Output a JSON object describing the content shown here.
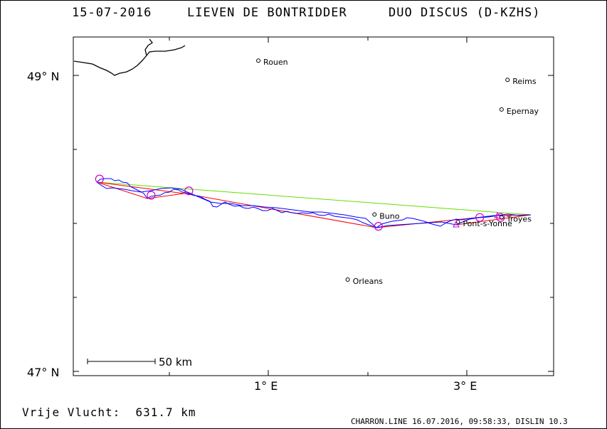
{
  "header": {
    "date": "15-07-2016",
    "pilot": "LIEVEN DE BONTRIDDER",
    "glider": "DUO DISCUS (D-KZHS)"
  },
  "axes": {
    "lat_top_label": "49° N",
    "lat_bottom_label": "47° N",
    "lon_left_label": "1° E",
    "lon_right_label": "3° E"
  },
  "scale_bar": {
    "label": "50 km"
  },
  "cities": [
    {
      "name": "Rouen",
      "lon": 0.9,
      "lat": 49.1
    },
    {
      "name": "Reims",
      "lon": 3.41,
      "lat": 48.97
    },
    {
      "name": "Epernay",
      "lon": 3.35,
      "lat": 48.77
    },
    {
      "name": "Buno",
      "lon": 2.07,
      "lat": 48.06
    },
    {
      "name": "Pont-s-Yonne",
      "lon": 2.91,
      "lat": 48.01
    },
    {
      "name": "Troyes",
      "lon": 3.35,
      "lat": 48.04
    },
    {
      "name": "Orleans",
      "lon": 1.8,
      "lat": 47.62
    }
  ],
  "turnpoints": [
    {
      "lon": -0.7,
      "lat": 48.3
    },
    {
      "lon": -0.18,
      "lat": 48.19
    },
    {
      "lon": 0.2,
      "lat": 48.22
    },
    {
      "lon": 2.11,
      "lat": 47.98
    },
    {
      "lon": 3.13,
      "lat": 48.04
    },
    {
      "lon": 3.34,
      "lat": 48.04
    }
  ],
  "footer": {
    "distance_label": "Vrije Vlucht:",
    "distance_value": "631.7 km",
    "meta": "CHARRON.LINE 16.07.2016, 09:58:33, DISLIN 10.3"
  },
  "colors": {
    "track": "#0000ff",
    "route": "#ff0000",
    "straight_line": "#66dd00",
    "turnpoint": "#cc00cc",
    "coastline": "#000000"
  }
}
